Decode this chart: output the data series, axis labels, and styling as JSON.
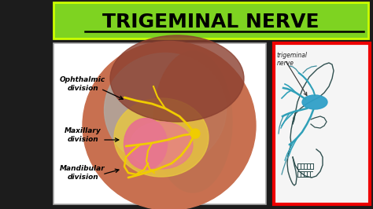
{
  "title": "TRIGEMINAL NERVE",
  "title_bg_color": "#7ed321",
  "title_border_color": "#ccff00",
  "title_font_color": "#000000",
  "title_fontsize": 18,
  "bg_color": "#1c1c1c",
  "left_panel_bg": "#ffffff",
  "left_panel_border": "#aaaaaa",
  "right_panel_border": "#ee0000",
  "right_panel_bg": "#f5f5f5",
  "left_labels": [
    "Ophthalmic\ndivision",
    "Maxillary\ndivision",
    "Mandibular\ndivision"
  ],
  "right_label": "trigeminal\nnerve",
  "fig_width": 4.74,
  "fig_height": 2.66,
  "dpi": 100
}
